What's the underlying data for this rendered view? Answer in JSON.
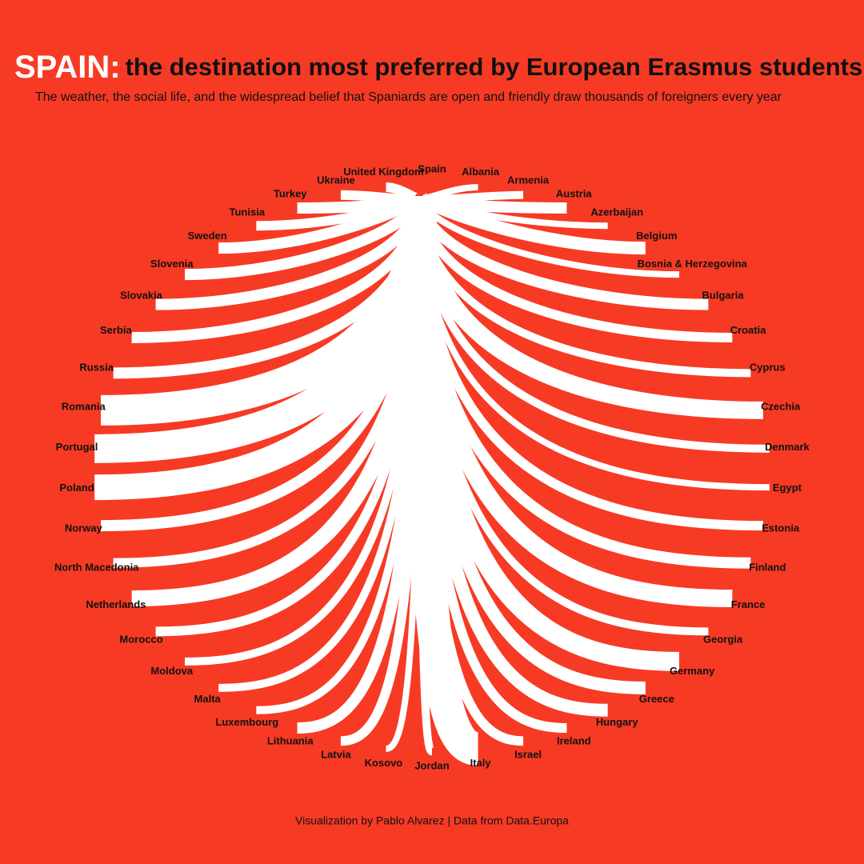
{
  "chart_data": {
    "type": "flow",
    "title": "SPAIN:",
    "title_rest": "the destination most preferred by European Erasmus students",
    "subtitle": "The weather, the social life, and the widespread belief that Spaniards are open and friendly draw thousands of foreigners every year",
    "origin": "Spain",
    "categories": [
      "Albania",
      "Armenia",
      "Austria",
      "Azerbaijan",
      "Belgium",
      "Bosnia & Herzegovina",
      "Bulgaria",
      "Croatia",
      "Cyprus",
      "Czechia",
      "Denmark",
      "Egypt",
      "Estonia",
      "Finland",
      "France",
      "Georgia",
      "Germany",
      "Greece",
      "Hungary",
      "Ireland",
      "Israel",
      "Italy",
      "Jordan",
      "Kosovo",
      "Latvia",
      "Lithuania",
      "Luxembourg",
      "Malta",
      "Moldova",
      "Morocco",
      "Netherlands",
      "North Macedonia",
      "Norway",
      "Poland",
      "Portugal",
      "Romania",
      "Russia",
      "Serbia",
      "Slovakia",
      "Slovenia",
      "Sweden",
      "Tunisia",
      "Turkey",
      "Ukraine",
      "United Kingdom"
    ],
    "values": [
      8,
      10,
      14,
      8,
      16,
      8,
      14,
      12,
      10,
      22,
      10,
      8,
      12,
      14,
      22,
      10,
      24,
      16,
      16,
      12,
      12,
      42,
      10,
      8,
      12,
      14,
      10,
      10,
      10,
      12,
      20,
      12,
      14,
      32,
      36,
      38,
      14,
      14,
      14,
      14,
      14,
      12,
      14,
      12,
      12
    ],
    "color": "#ffffff",
    "background": "#f73a24",
    "footer": "Visualization by Pablo Alvarez | Data from Data.Europa"
  }
}
